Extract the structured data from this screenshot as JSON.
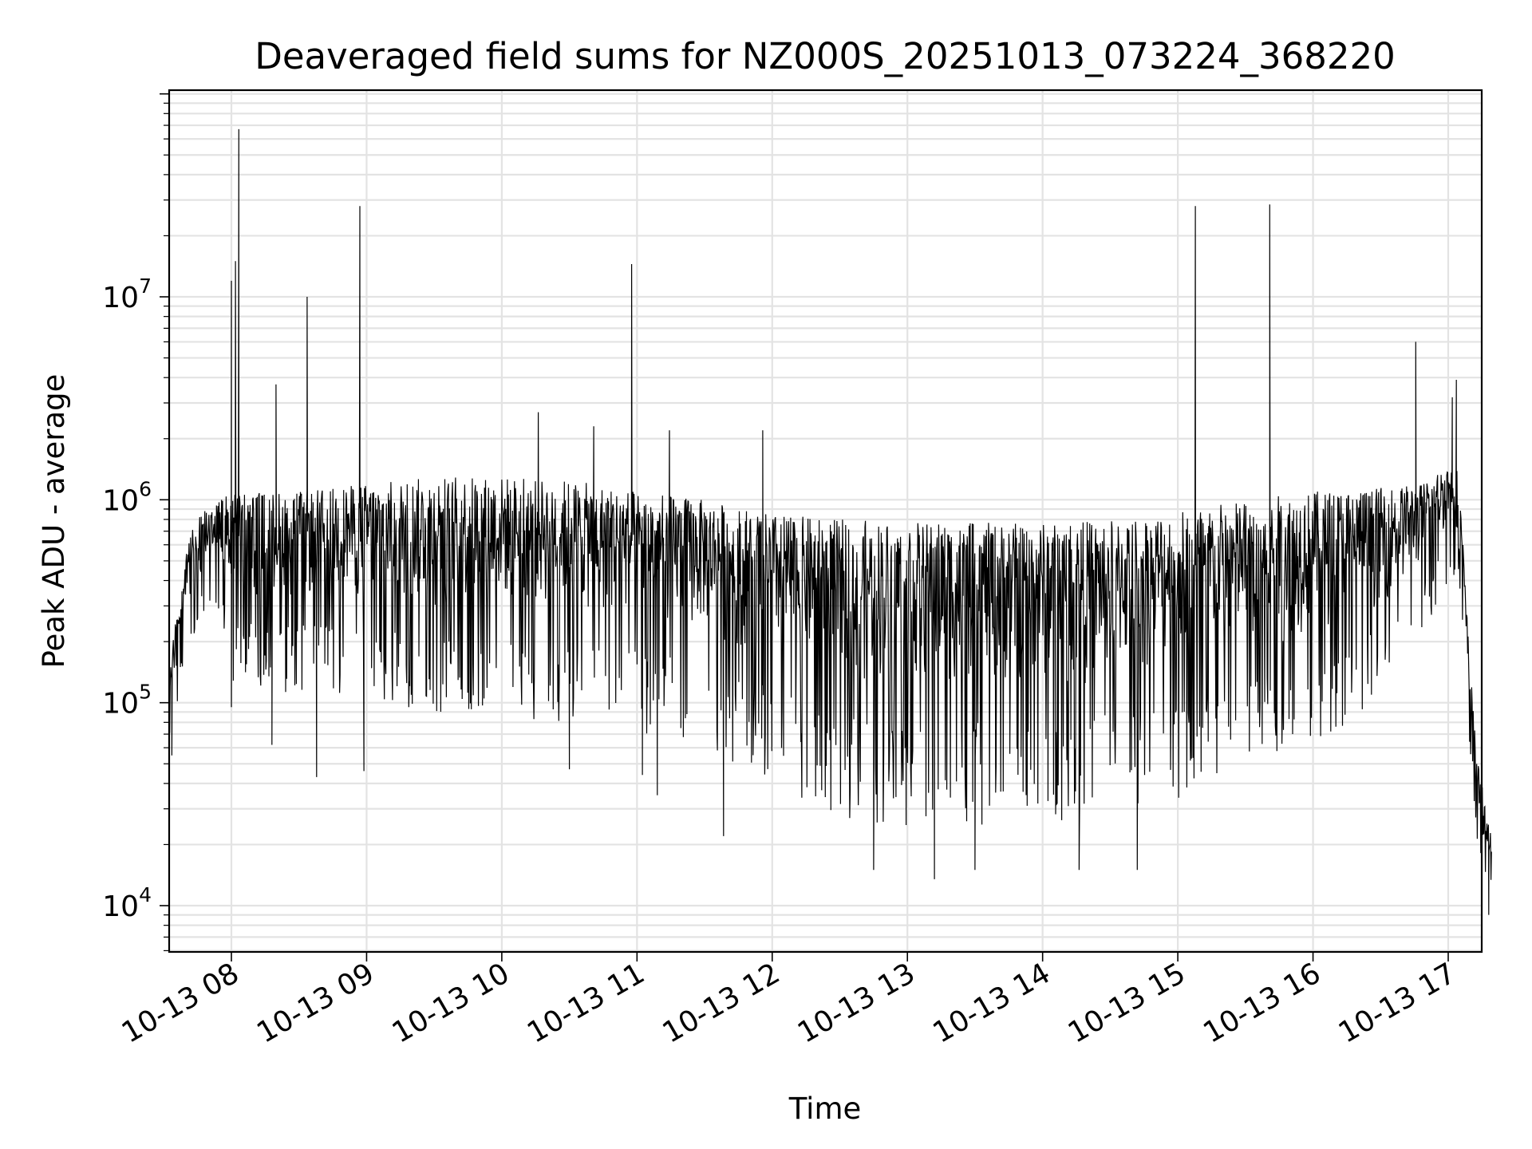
{
  "chart_data": {
    "type": "line",
    "title": "Deaveraged field sums for NZ000S_20251013_073224_368220",
    "xlabel": "Time",
    "ylabel": "Peak ADU - average",
    "yscale": "log",
    "ylim": [
      6000,
      90000000
    ],
    "xlim_hours": [
      7.54,
      17.32
    ],
    "grid": "on (major and minor)",
    "colors": {
      "line": "#000000",
      "grid": "#e3e3e3",
      "frame": "#000000",
      "background": "#ffffff"
    },
    "x_ticks": [
      {
        "hour": 8,
        "label": "10-13 08"
      },
      {
        "hour": 9,
        "label": "10-13 09"
      },
      {
        "hour": 10,
        "label": "10-13 10"
      },
      {
        "hour": 11,
        "label": "10-13 11"
      },
      {
        "hour": 12,
        "label": "10-13 12"
      },
      {
        "hour": 13,
        "label": "10-13 13"
      },
      {
        "hour": 14,
        "label": "10-13 14"
      },
      {
        "hour": 15,
        "label": "10-13 15"
      },
      {
        "hour": 16,
        "label": "10-13 16"
      },
      {
        "hour": 17,
        "label": "10-13 17"
      }
    ],
    "y_ticks": [
      {
        "value": 10000,
        "base": "10",
        "exp": "4"
      },
      {
        "value": 100000,
        "base": "10",
        "exp": "5"
      },
      {
        "value": 1000000,
        "base": "10",
        "exp": "6"
      },
      {
        "value": 10000000,
        "base": "10",
        "exp": "7"
      }
    ],
    "envelope": {
      "description": "Dense noisy series; upper/lower envelope estimated from chart (hours, ADU)",
      "hours": [
        7.54,
        7.65,
        7.75,
        7.9,
        8.0,
        8.5,
        9.0,
        9.5,
        10.0,
        10.5,
        11.0,
        11.5,
        12.0,
        12.5,
        13.0,
        13.5,
        14.0,
        14.5,
        15.0,
        15.5,
        16.0,
        16.5,
        16.8,
        17.0,
        17.08,
        17.15,
        17.22,
        17.32
      ],
      "upper": [
        150000,
        500000,
        900000,
        1000000,
        1100000,
        1100000,
        1200000,
        1300000,
        1300000,
        1250000,
        1100000,
        1000000,
        850000,
        800000,
        780000,
        770000,
        770000,
        800000,
        900000,
        1000000,
        1100000,
        1150000,
        1200000,
        1500000,
        1400000,
        200000,
        50000,
        22000
      ],
      "lower": [
        60000,
        150000,
        200000,
        300000,
        120000,
        110000,
        100000,
        80000,
        80000,
        80000,
        70000,
        60000,
        40000,
        27000,
        24000,
        24000,
        25000,
        27000,
        33000,
        40000,
        60000,
        100000,
        200000,
        400000,
        400000,
        60000,
        18000,
        10000
      ]
    },
    "spikes": [
      {
        "hour": 8.0,
        "value": 12000000
      },
      {
        "hour": 8.03,
        "value": 15000000
      },
      {
        "hour": 8.055,
        "value": 67000000
      },
      {
        "hour": 8.33,
        "value": 3700000
      },
      {
        "hour": 8.56,
        "value": 10000000
      },
      {
        "hour": 8.95,
        "value": 28000000
      },
      {
        "hour": 10.27,
        "value": 2700000
      },
      {
        "hour": 10.68,
        "value": 2300000
      },
      {
        "hour": 10.96,
        "value": 14500000
      },
      {
        "hour": 11.24,
        "value": 2200000
      },
      {
        "hour": 11.93,
        "value": 2200000
      },
      {
        "hour": 15.13,
        "value": 28000000
      },
      {
        "hour": 15.68,
        "value": 28500000
      },
      {
        "hour": 16.76,
        "value": 6000000
      },
      {
        "hour": 17.03,
        "value": 3200000
      },
      {
        "hour": 17.06,
        "value": 3900000
      }
    ],
    "dips": [
      {
        "hour": 7.56,
        "value": 55000
      },
      {
        "hour": 8.0,
        "value": 95000
      },
      {
        "hour": 8.3,
        "value": 62000
      },
      {
        "hour": 8.63,
        "value": 43000
      },
      {
        "hour": 8.98,
        "value": 46000
      },
      {
        "hour": 10.5,
        "value": 47000
      },
      {
        "hour": 11.04,
        "value": 44000
      },
      {
        "hour": 11.15,
        "value": 35000
      },
      {
        "hour": 11.64,
        "value": 22000
      },
      {
        "hour": 12.75,
        "value": 15000
      },
      {
        "hour": 13.2,
        "value": 13500
      },
      {
        "hour": 13.5,
        "value": 15000
      },
      {
        "hour": 14.27,
        "value": 15000
      },
      {
        "hour": 14.7,
        "value": 15000
      },
      {
        "hour": 17.3,
        "value": 9000
      }
    ]
  }
}
